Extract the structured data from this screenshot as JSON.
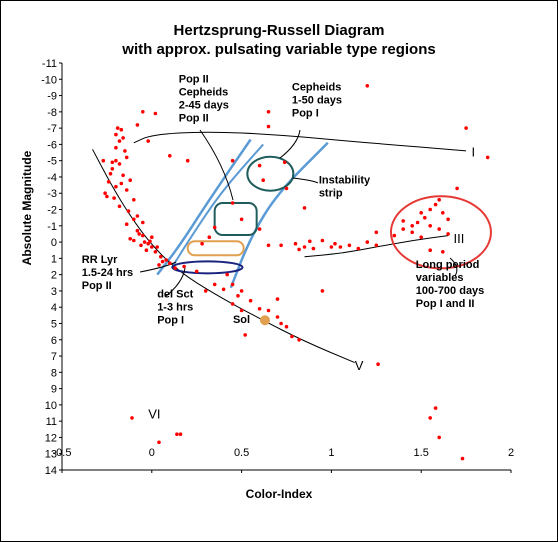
{
  "chart_data": {
    "type": "scatter",
    "title": "Hertzsprung-Russell Diagram",
    "subtitle": "with approx. pulsating variable type regions",
    "xlabel": "Color-Index",
    "ylabel": "Absolute Magnitude",
    "xlim": [
      -0.5,
      2
    ],
    "ylim": [
      -11,
      14
    ],
    "y_inverted": true,
    "x_ticks": [
      "-0.5",
      "0",
      "0.5",
      "1",
      "1.5",
      "2"
    ],
    "x_tick_values": [
      -0.5,
      0,
      0.5,
      1,
      1.5,
      2
    ],
    "y_ticks": [
      "-11",
      "-10",
      "-9",
      "-8",
      "-7",
      "-6",
      "-5",
      "-4",
      "-3",
      "-2",
      "-1",
      "0",
      "1",
      "2",
      "3",
      "4",
      "5",
      "6",
      "7",
      "8",
      "9",
      "10",
      "11",
      "12",
      "13",
      "14"
    ],
    "y_tick_values": [
      -11,
      -10,
      -9,
      -8,
      -7,
      -6,
      -5,
      -4,
      -3,
      -2,
      -1,
      0,
      1,
      2,
      3,
      4,
      5,
      6,
      7,
      8,
      9,
      10,
      11,
      12,
      13,
      14
    ],
    "grid": false,
    "point_color": "#ff0000",
    "stars": [
      [
        -0.19,
        -7.0
      ],
      [
        -0.17,
        -6.9
      ],
      [
        -0.18,
        -6.2
      ],
      [
        -0.2,
        -5.8
      ],
      [
        -0.15,
        -5.6
      ],
      [
        -0.14,
        -5.2
      ],
      [
        -0.18,
        -4.8
      ],
      [
        -0.22,
        -4.5
      ],
      [
        -0.16,
        -4.1
      ],
      [
        -0.12,
        -3.8
      ],
      [
        -0.2,
        -3.4
      ],
      [
        -0.14,
        -3.2
      ],
      [
        -0.25,
        -2.8
      ],
      [
        -0.1,
        -2.6
      ],
      [
        -0.18,
        -2.2
      ],
      [
        -0.13,
        -1.9
      ],
      [
        -0.08,
        -1.6
      ],
      [
        -0.1,
        -1.4
      ],
      [
        -0.05,
        -1.2
      ],
      [
        -0.14,
        -1.1
      ],
      [
        -0.08,
        -0.7
      ],
      [
        -0.05,
        -0.4
      ],
      [
        -0.12,
        -0.2
      ],
      [
        -0.06,
        0.2
      ],
      [
        -0.02,
        0.1
      ],
      [
        -0.1,
        -0.1
      ],
      [
        0.0,
        0.3
      ],
      [
        -0.03,
        0.5
      ],
      [
        0.02,
        0.6
      ],
      [
        0.05,
        0.9
      ],
      [
        0.08,
        1.1
      ],
      [
        0.04,
        1.4
      ],
      [
        0.1,
        1.3
      ],
      [
        0.13,
        1.6
      ],
      [
        0.06,
        1.2
      ],
      [
        -0.04,
        0.0
      ],
      [
        -0.07,
        -0.5
      ],
      [
        0.0,
        -0.3
      ],
      [
        -0.01,
        -0.05
      ],
      [
        0.03,
        0.3
      ],
      [
        -0.27,
        -5.0
      ],
      [
        -0.22,
        -4.9
      ],
      [
        -0.2,
        -5.0
      ],
      [
        -0.23,
        -4.2
      ],
      [
        -0.17,
        -3.6
      ],
      [
        -0.26,
        -3.0
      ],
      [
        -0.21,
        -2.7
      ],
      [
        -0.24,
        -3.7
      ],
      [
        -0.2,
        -6.6
      ],
      [
        -0.16,
        -6.4
      ],
      [
        -0.08,
        -7.2
      ],
      [
        -0.05,
        -8.0
      ],
      [
        -0.02,
        -6.2
      ],
      [
        0.02,
        -7.9
      ],
      [
        0.1,
        -5.3
      ],
      [
        0.2,
        -5.0
      ],
      [
        0.45,
        -5.0
      ],
      [
        0.6,
        -4.7
      ],
      [
        0.65,
        -7.1
      ],
      [
        0.65,
        -8.0
      ],
      [
        0.62,
        -3.8
      ],
      [
        0.74,
        -4.9
      ],
      [
        0.75,
        -3.3
      ],
      [
        0.85,
        -2.1
      ],
      [
        0.6,
        -0.8
      ],
      [
        0.65,
        0.2
      ],
      [
        0.72,
        0.2
      ],
      [
        0.8,
        0.1
      ],
      [
        0.85,
        0.3
      ],
      [
        0.95,
        -0.1
      ],
      [
        1.02,
        0.1
      ],
      [
        1.05,
        0.3
      ],
      [
        1.1,
        0.2
      ],
      [
        1.15,
        0.4
      ],
      [
        1.2,
        0.0
      ],
      [
        1.25,
        0.2
      ],
      [
        0.9,
        0.4
      ],
      [
        0.88,
        -0.05
      ],
      [
        0.82,
        0.45
      ],
      [
        1.0,
        0.3
      ],
      [
        0.42,
        2.0
      ],
      [
        0.45,
        2.6
      ],
      [
        0.48,
        3.3
      ],
      [
        0.5,
        3.0
      ],
      [
        0.55,
        3.6
      ],
      [
        0.6,
        4.1
      ],
      [
        0.65,
        4.2
      ],
      [
        0.7,
        4.6
      ],
      [
        0.72,
        5.0
      ],
      [
        0.75,
        5.2
      ],
      [
        0.78,
        5.8
      ],
      [
        0.82,
        6.0
      ],
      [
        0.45,
        3.8
      ],
      [
        0.5,
        4.2
      ],
      [
        0.35,
        2.6
      ],
      [
        0.3,
        3.0
      ],
      [
        0.4,
        2.9
      ],
      [
        0.52,
        5.7
      ],
      [
        0.7,
        3.5
      ],
      [
        0.95,
        3.0
      ],
      [
        1.25,
        -0.6
      ],
      [
        1.35,
        -0.4
      ],
      [
        1.4,
        -0.8
      ],
      [
        1.45,
        -1.0
      ],
      [
        1.48,
        -1.2
      ],
      [
        1.52,
        -1.5
      ],
      [
        1.55,
        -2.0
      ],
      [
        1.58,
        -2.3
      ],
      [
        1.6,
        -2.6
      ],
      [
        1.62,
        -1.8
      ],
      [
        1.65,
        -1.4
      ],
      [
        1.55,
        -1.0
      ],
      [
        1.6,
        -0.8
      ],
      [
        1.5,
        -0.3
      ],
      [
        1.45,
        -0.6
      ],
      [
        1.4,
        -1.3
      ],
      [
        1.5,
        -1.8
      ],
      [
        1.65,
        -0.5
      ],
      [
        1.62,
        0.6
      ],
      [
        1.55,
        0.5
      ],
      [
        1.7,
        -3.3
      ],
      [
        1.75,
        -7.0
      ],
      [
        1.87,
        -5.2
      ],
      [
        1.2,
        -9.6
      ],
      [
        1.26,
        7.5
      ],
      [
        1.58,
        10.2
      ],
      [
        1.55,
        10.8
      ],
      [
        1.6,
        12.0
      ],
      [
        1.73,
        13.3
      ],
      [
        -0.11,
        10.8
      ],
      [
        0.04,
        12.3
      ],
      [
        0.14,
        11.8
      ],
      [
        0.16,
        11.8
      ],
      [
        0.28,
        0.1
      ],
      [
        0.32,
        -0.3
      ],
      [
        0.35,
        -0.9
      ],
      [
        0.45,
        -2.4
      ],
      [
        0.5,
        -1.4
      ],
      [
        0.25,
        1.8
      ],
      [
        0.18,
        1.5
      ]
    ],
    "sun": [
      0.63,
      4.8
    ],
    "sun_label": "Sol",
    "sequences": [
      {
        "name": "I",
        "points": [
          [
            -0.1,
            -6.1
          ],
          [
            0.0,
            -6.6
          ],
          [
            0.3,
            -6.8
          ],
          [
            0.7,
            -6.6
          ],
          [
            1.2,
            -6.1
          ],
          [
            1.75,
            -5.6
          ]
        ],
        "label_at": [
          1.78,
          -5.5
        ]
      },
      {
        "name": "III",
        "points": [
          [
            0.85,
            0.9
          ],
          [
            1.05,
            0.7
          ],
          [
            1.25,
            0.3
          ],
          [
            1.45,
            -0.1
          ],
          [
            1.65,
            -0.4
          ]
        ],
        "label_at": [
          1.68,
          -0.2
        ]
      },
      {
        "name": "V",
        "points": [
          [
            -0.33,
            -5.7
          ],
          [
            -0.22,
            -3.4
          ],
          [
            -0.12,
            -1.6
          ],
          [
            0.0,
            0.2
          ],
          [
            0.15,
            1.8
          ],
          [
            0.35,
            3.2
          ],
          [
            0.6,
            4.7
          ],
          [
            0.85,
            6.1
          ],
          [
            1.13,
            7.4
          ]
        ],
        "label_at": [
          1.13,
          7.6
        ]
      },
      {
        "name": "VI",
        "points": [],
        "label_at": [
          -0.02,
          10.6
        ]
      }
    ],
    "instability_strip": {
      "left_edge": [
        [
          0.55,
          -6.3
        ],
        [
          0.32,
          -2.6
        ],
        [
          0.15,
          0.3
        ],
        [
          0.03,
          2.0
        ]
      ],
      "right_edge": [
        [
          0.98,
          -6.1
        ],
        [
          0.7,
          -3.0
        ],
        [
          0.55,
          -0.3
        ],
        [
          0.44,
          2.8
        ]
      ],
      "inner_line": [
        [
          0.62,
          -6.0
        ],
        [
          0.38,
          -3.0
        ],
        [
          0.2,
          0.0
        ],
        [
          0.11,
          1.6
        ]
      ]
    },
    "annotations": [
      {
        "id": "pop2-cepheids",
        "lines": [
          "Pop II",
          "Cepheids",
          "2-45 days",
          "Pop II"
        ],
        "at": [
          0.15,
          -9.8
        ]
      },
      {
        "id": "cepheids",
        "lines": [
          "Cepheids",
          "1-50 days",
          "Pop I"
        ],
        "at": [
          0.78,
          -9.3
        ]
      },
      {
        "id": "instability-strip",
        "lines": [
          "Instability",
          "strip"
        ],
        "at": [
          0.93,
          -3.6
        ]
      },
      {
        "id": "long-period",
        "lines": [
          "Long period",
          "variables",
          "100-700 days",
          "Pop I and II"
        ],
        "at": [
          1.47,
          1.6
        ]
      },
      {
        "id": "rr-lyr",
        "lines": [
          "RR Lyr",
          "1.5-24 hrs",
          "Pop II"
        ],
        "at": [
          -0.39,
          1.3
        ]
      },
      {
        "id": "del-sct",
        "lines": [
          "del Sct",
          "1-3 hrs",
          "Pop I"
        ],
        "at": [
          0.03,
          3.4
        ]
      }
    ]
  }
}
